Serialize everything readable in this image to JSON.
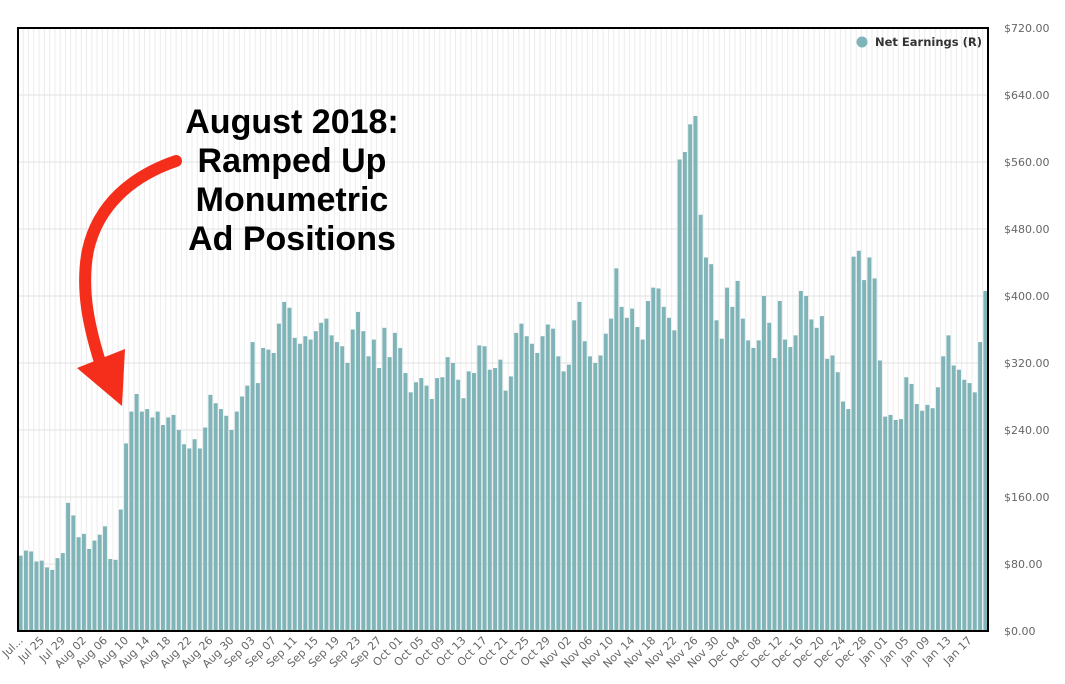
{
  "chart_data": {
    "type": "bar",
    "title": "",
    "xlabel": "",
    "ylabel": "",
    "ylim": [
      0,
      720
    ],
    "y_axis_side": "right",
    "y_ticks": [
      "$0.00",
      "$80.00",
      "$160.00",
      "$240.00",
      "$320.00",
      "$400.00",
      "$480.00",
      "$560.00",
      "$640.00",
      "$720.00"
    ],
    "y_tick_values": [
      0,
      80,
      160,
      240,
      320,
      400,
      480,
      560,
      640,
      720
    ],
    "x_tick_labels": [
      "Jul...",
      "Jul 25",
      "Jul 29",
      "Aug 02",
      "Aug 06",
      "Aug 10",
      "Aug 14",
      "Aug 18",
      "Aug 22",
      "Aug 26",
      "Aug 30",
      "Sep 03",
      "Sep 07",
      "Sep 11",
      "Sep 15",
      "Sep 19",
      "Sep 23",
      "Sep 27",
      "Oct 01",
      "Oct 05",
      "Oct 09",
      "Oct 13",
      "Oct 17",
      "Oct 21",
      "Oct 25",
      "Oct 29",
      "Nov 02",
      "Nov 06",
      "Nov 10",
      "Nov 14",
      "Nov 18",
      "Nov 22",
      "Nov 26",
      "Nov 30",
      "Dec 04",
      "Dec 08",
      "Dec 12",
      "Dec 16",
      "Dec 20",
      "Dec 24",
      "Dec 28",
      "Jan 01",
      "Jan 05",
      "Jan 09",
      "Jan 13",
      "Jan 17"
    ],
    "legend": {
      "position": "top-right",
      "entries": [
        {
          "label": "Net Earnings (R)",
          "color": "#7fb5b9"
        }
      ]
    },
    "grid": true,
    "series": [
      {
        "name": "Net Earnings (R)",
        "color": "#7fb5b9",
        "values": [
          90,
          96,
          95,
          83,
          84,
          76,
          73,
          87,
          93,
          153,
          138,
          112,
          116,
          98,
          108,
          115,
          125,
          86,
          85,
          145,
          224,
          262,
          283,
          262,
          265,
          255,
          262,
          246,
          255,
          258,
          240,
          223,
          218,
          229,
          218,
          243,
          282,
          272,
          265,
          257,
          240,
          262,
          280,
          293,
          345,
          296,
          338,
          336,
          332,
          367,
          393,
          386,
          350,
          343,
          352,
          348,
          358,
          368,
          373,
          353,
          345,
          340,
          320,
          360,
          381,
          358,
          328,
          348,
          314,
          362,
          327,
          356,
          338,
          308,
          285,
          297,
          302,
          293,
          277,
          302,
          303,
          327,
          320,
          300,
          278,
          310,
          308,
          341,
          340,
          312,
          314,
          324,
          287,
          304,
          356,
          367,
          352,
          343,
          332,
          352,
          366,
          361,
          328,
          310,
          318,
          371,
          393,
          346,
          328,
          320,
          329,
          355,
          373,
          433,
          387,
          374,
          385,
          363,
          348,
          394,
          410,
          409,
          387,
          374,
          359,
          563,
          572,
          605,
          615,
          497,
          446,
          438,
          371,
          349,
          410,
          387,
          418,
          373,
          347,
          338,
          347,
          400,
          368,
          326,
          394,
          348,
          339,
          353,
          406,
          400,
          372,
          362,
          376,
          325,
          329,
          309,
          274,
          265,
          447,
          454,
          419,
          446,
          421,
          323,
          256,
          258,
          252,
          253,
          303,
          295,
          271,
          263,
          270,
          266,
          291,
          328,
          353,
          317,
          312,
          300,
          296,
          285,
          345,
          406
        ]
      }
    ],
    "annotation": {
      "lines": [
        "August 2018:",
        "Ramped Up",
        "Monumetric",
        "Ad Positions"
      ],
      "arrow_color": "#f52e1b"
    }
  }
}
